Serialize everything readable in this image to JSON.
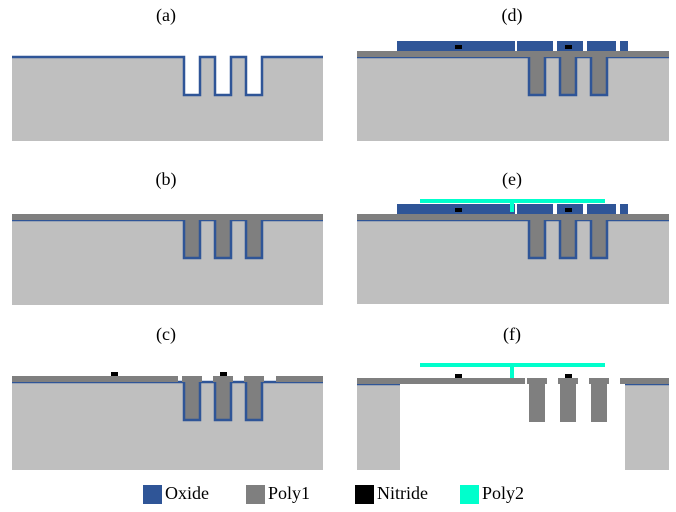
{
  "panels": [
    {
      "label": "(a)"
    },
    {
      "label": "(b)"
    },
    {
      "label": "(c)"
    },
    {
      "label": "(d)"
    },
    {
      "label": "(e)"
    },
    {
      "label": "(f)"
    }
  ],
  "legend": [
    {
      "label": "Oxide",
      "color": "#2f5597"
    },
    {
      "label": "Poly1",
      "color": "#7f7f7f"
    },
    {
      "label": "Nitride",
      "color": "#000000"
    },
    {
      "label": "Poly2",
      "color": "#00ffcc"
    }
  ]
}
